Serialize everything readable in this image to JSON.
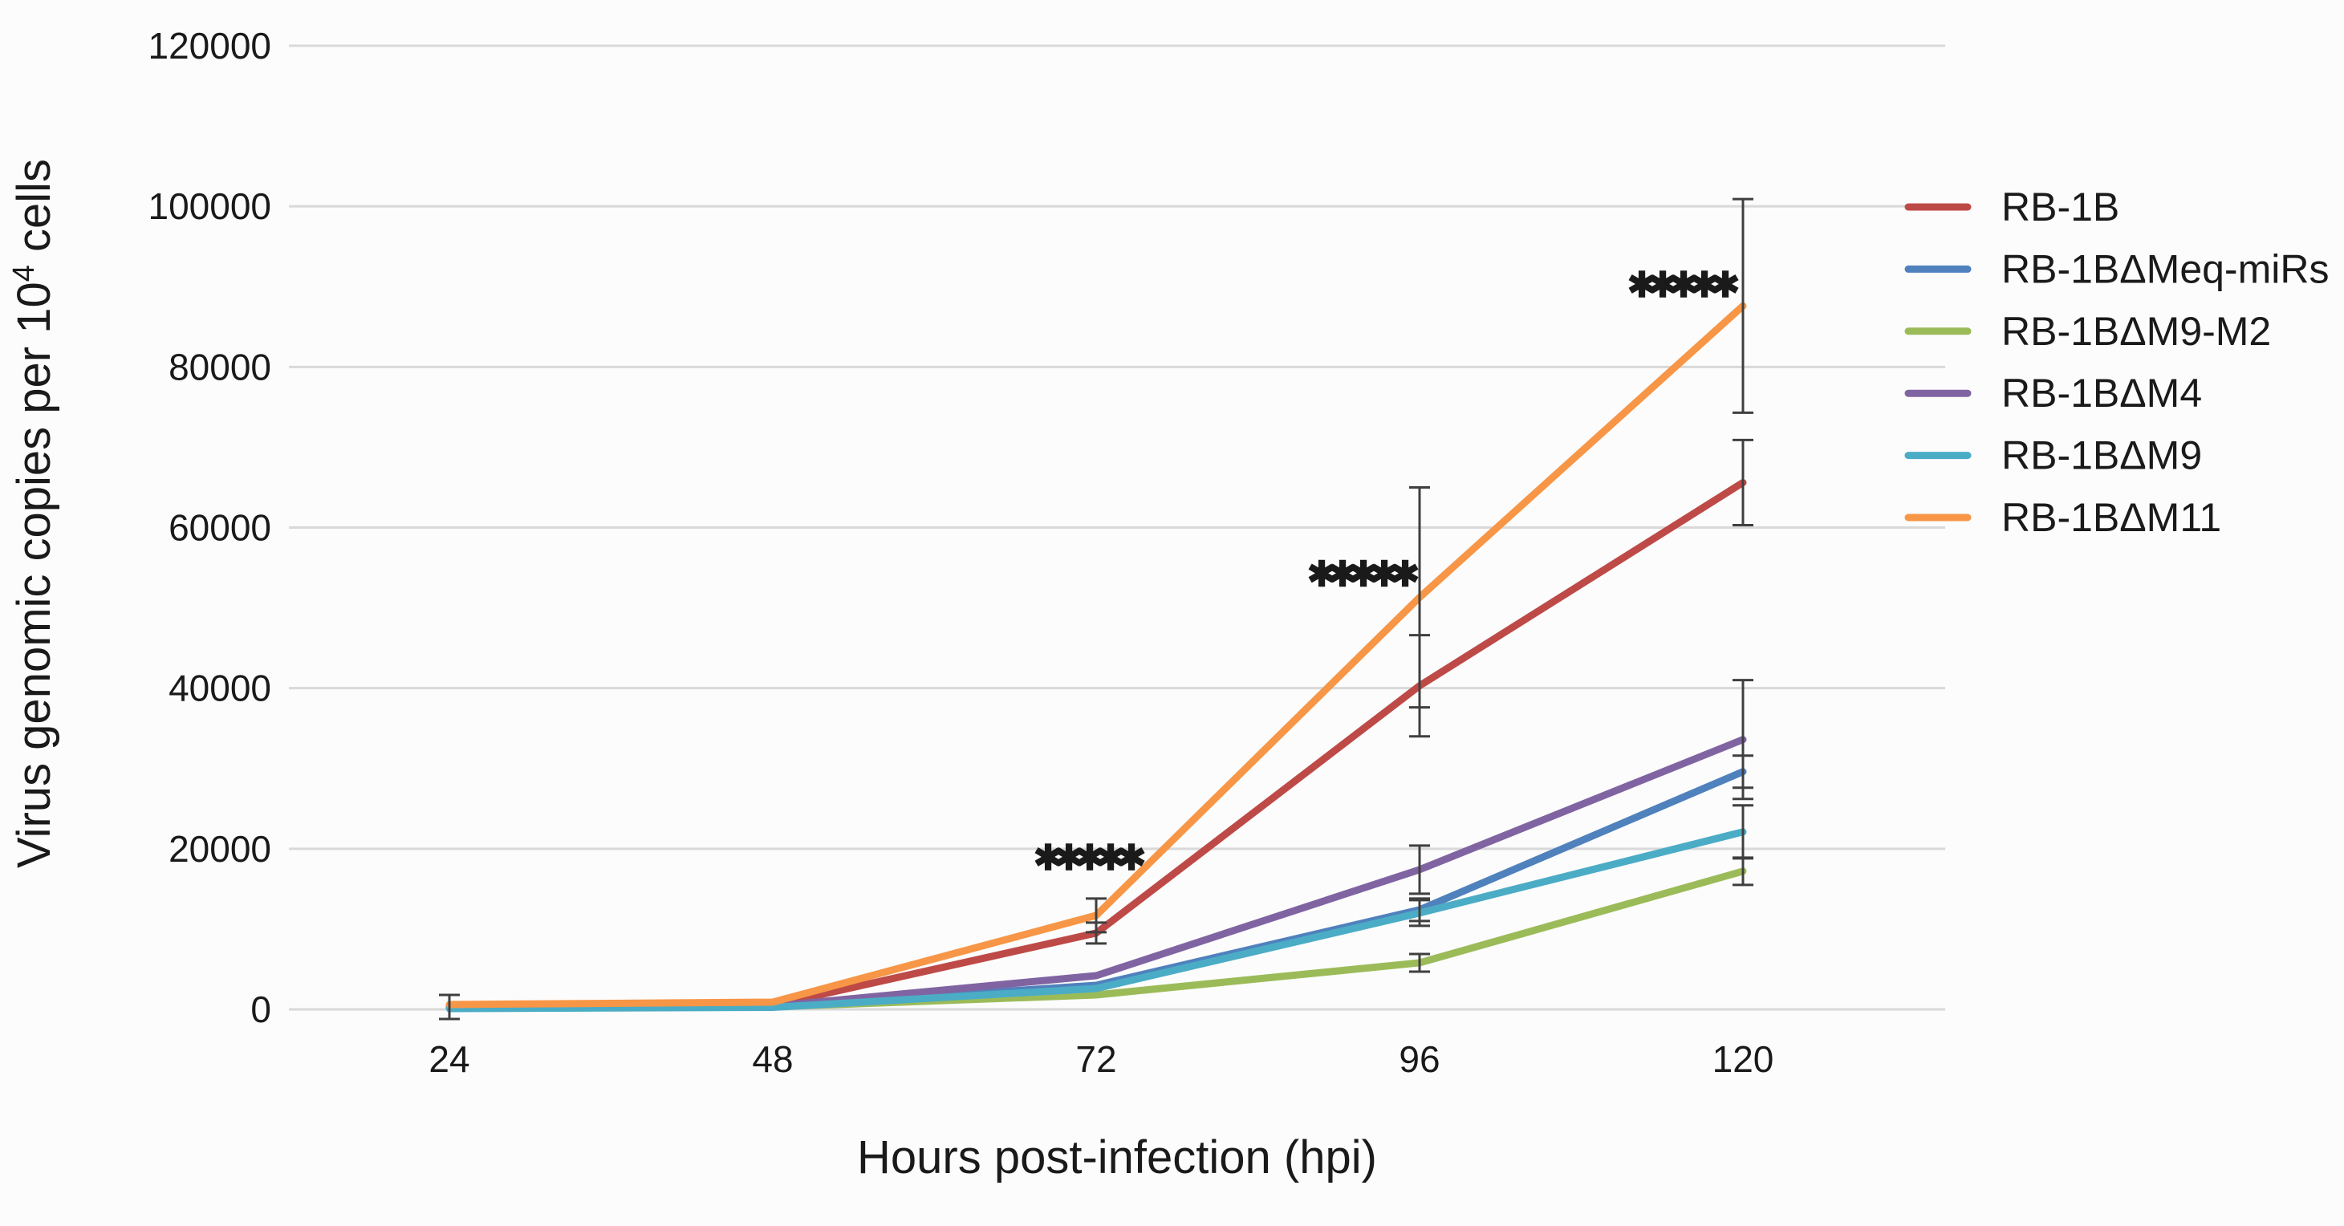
{
  "chart_data": {
    "type": "line",
    "title": "",
    "xlabel": "Hours post-infection (hpi)",
    "ylabel": "Virus genomic copies per 10⁴ cells",
    "ylabel_parts": {
      "prefix": "Virus genomic copies per 10",
      "superscript": "4",
      "suffix": " cells"
    },
    "x": [
      24,
      48,
      72,
      96,
      120
    ],
    "xtick_labels": [
      "24",
      "48",
      "72",
      "96",
      "120"
    ],
    "yticks": [
      0,
      20000,
      40000,
      60000,
      80000,
      100000,
      120000
    ],
    "ytick_labels": [
      "0",
      "20000",
      "40000",
      "60000",
      "80000",
      "100000",
      "120000"
    ],
    "ylim": [
      0,
      120000
    ],
    "xlim": [
      24,
      120
    ],
    "grid": "horizontal",
    "legend_position": "right",
    "series": [
      {
        "name": "RB-1B",
        "color": "#BE4A47",
        "values": [
          300,
          500,
          9500,
          40300,
          65600
        ],
        "errors": [
          1500,
          0,
          1300,
          6300,
          5300
        ]
      },
      {
        "name": "RB-1BΔMeq-miRs",
        "color": "#4F81BD",
        "values": [
          200,
          350,
          3000,
          12400,
          29600
        ],
        "errors": [
          0,
          0,
          0,
          1400,
          2000
        ]
      },
      {
        "name": "RB-1BΔM9-M2",
        "color": "#9BBB59",
        "values": [
          150,
          300,
          1800,
          5800,
          17200
        ],
        "errors": [
          0,
          0,
          0,
          1100,
          1700
        ]
      },
      {
        "name": "RB-1BΔM4",
        "color": "#8064A2",
        "values": [
          200,
          400,
          4200,
          17400,
          33600
        ],
        "errors": [
          0,
          0,
          0,
          3000,
          7400
        ]
      },
      {
        "name": "RB-1BΔM9",
        "color": "#4BACC6",
        "values": [
          100,
          250,
          2600,
          12000,
          22100
        ],
        "errors": [
          0,
          0,
          0,
          1600,
          3300
        ]
      },
      {
        "name": "RB-1BΔM11",
        "color": "#F79646",
        "values": [
          600,
          900,
          11700,
          51300,
          87600
        ],
        "errors": [
          0,
          0,
          2100,
          13700,
          13300
        ]
      }
    ],
    "significance_markers": {
      "symbol": "✱",
      "colors": [
        "#ED7D31",
        "#3B3B98",
        "#41AEE1",
        "#4472C4",
        "#5F9E33"
      ],
      "clusters": [
        {
          "hpi": 72,
          "value": 18900,
          "dx": -8
        },
        {
          "hpi": 96,
          "value": 54200,
          "dx": -70
        },
        {
          "hpi": 120,
          "value": 90200,
          "dx": -74
        }
      ]
    },
    "style": {
      "gridline_color": "#D9D9D9",
      "errorbar_color": "#3F3F3F",
      "tick_label_color": "#1a1a1a"
    }
  }
}
